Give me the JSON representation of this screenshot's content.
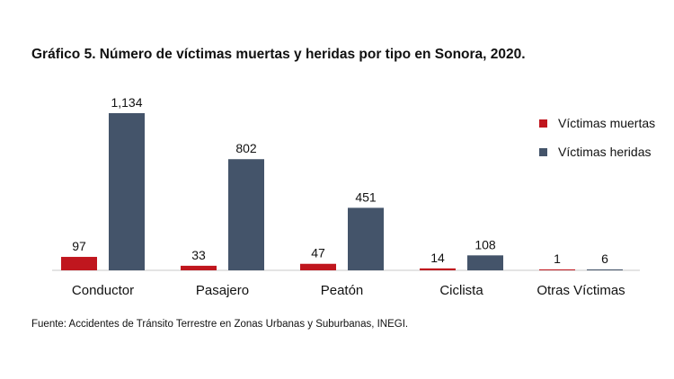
{
  "title": "Gráfico 5. Número de víctimas muertas y heridas por tipo en Sonora, 2020.",
  "source": "Fuente: Accidentes de Tránsito Terrestre en Zonas Urbanas y Suburbanas, INEGI.",
  "legend": {
    "items": [
      {
        "label": "Víctimas muertas",
        "color": "#c0161e"
      },
      {
        "label": "Víctimas heridas",
        "color": "#44546a"
      }
    ]
  },
  "chart_data": {
    "type": "bar",
    "title": "Gráfico 5. Número de víctimas muertas y heridas por tipo en Sonora, 2020.",
    "categories": [
      "Conductor",
      "Pasajero",
      "Peatón",
      "Ciclista",
      "Otras Víctimas"
    ],
    "series": [
      {
        "name": "Víctimas muertas",
        "values": [
          97,
          33,
          47,
          14,
          1
        ],
        "labels": [
          "97",
          "33",
          "47",
          "14",
          "1"
        ],
        "color": "#c0161e"
      },
      {
        "name": "Víctimas heridas",
        "values": [
          1134,
          802,
          451,
          108,
          6
        ],
        "labels": [
          "1,134",
          "802",
          "451",
          "108",
          "6"
        ],
        "color": "#44546a"
      }
    ],
    "ylim": [
      0,
      1134
    ],
    "grid": false,
    "legend_position": "right",
    "data_labels": true
  }
}
